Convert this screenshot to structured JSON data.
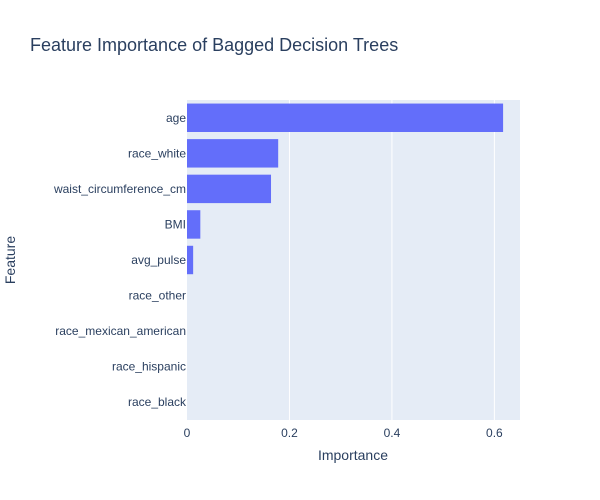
{
  "chart_data": {
    "type": "bar",
    "orientation": "horizontal",
    "title": "Feature Importance of Bagged Decision Trees",
    "xlabel": "Importance",
    "ylabel": "Feature",
    "categories": [
      "age",
      "race_white",
      "waist_circumference_cm",
      "BMI",
      "avg_pulse",
      "race_other",
      "race_mexican_american",
      "race_hispanic",
      "race_black"
    ],
    "values": [
      0.617,
      0.178,
      0.164,
      0.026,
      0.012,
      0.0,
      0.0,
      0.0,
      0.0
    ],
    "xlim": [
      0,
      0.65
    ],
    "xticks": [
      0,
      0.2,
      0.4,
      0.6
    ],
    "xtick_labels": [
      "0",
      "0.2",
      "0.4",
      "0.6"
    ],
    "grid": true,
    "legend": false,
    "colors": {
      "bar": "#636efa",
      "plot_background": "#e5ecf6",
      "grid": "#ffffff",
      "text": "#2a3f5f"
    }
  }
}
